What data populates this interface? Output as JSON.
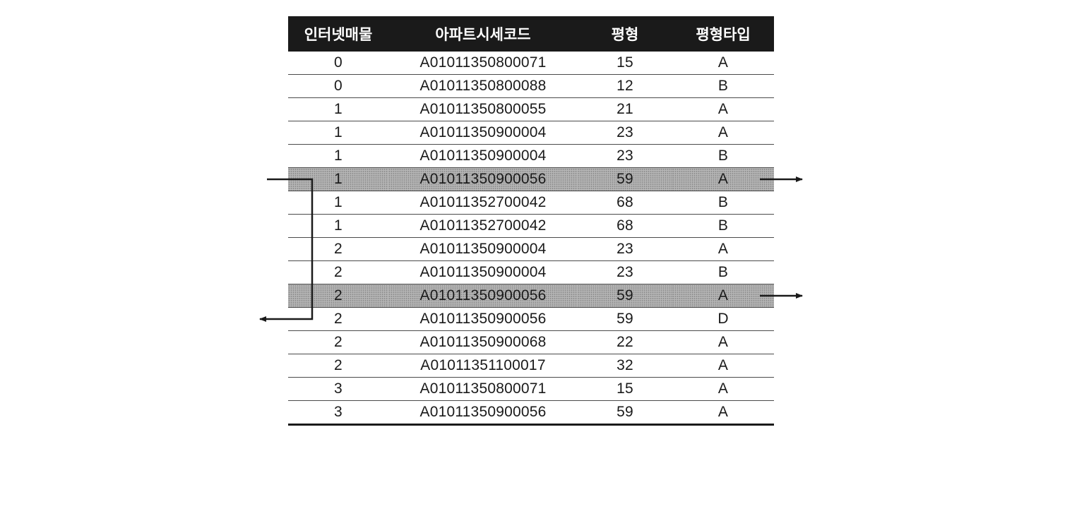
{
  "table": {
    "headers": [
      "인터넷매물",
      "아파트시세코드",
      "평형",
      "평형타입"
    ],
    "rows": [
      {
        "cells": [
          "0",
          "A01011350800071",
          "15",
          "A"
        ],
        "highlight": false
      },
      {
        "cells": [
          "0",
          "A01011350800088",
          "12",
          "B"
        ],
        "highlight": false
      },
      {
        "cells": [
          "1",
          "A01011350800055",
          "21",
          "A"
        ],
        "highlight": false
      },
      {
        "cells": [
          "1",
          "A01011350900004",
          "23",
          "A"
        ],
        "highlight": false
      },
      {
        "cells": [
          "1",
          "A01011350900004",
          "23",
          "B"
        ],
        "highlight": false
      },
      {
        "cells": [
          "1",
          "A01011350900056",
          "59",
          "A"
        ],
        "highlight": true
      },
      {
        "cells": [
          "1",
          "A01011352700042",
          "68",
          "B"
        ],
        "highlight": false
      },
      {
        "cells": [
          "1",
          "A01011352700042",
          "68",
          "B"
        ],
        "highlight": false
      },
      {
        "cells": [
          "2",
          "A01011350900004",
          "23",
          "A"
        ],
        "highlight": false
      },
      {
        "cells": [
          "2",
          "A01011350900004",
          "23",
          "B"
        ],
        "highlight": false
      },
      {
        "cells": [
          "2",
          "A01011350900056",
          "59",
          "A"
        ],
        "highlight": true
      },
      {
        "cells": [
          "2",
          "A01011350900056",
          "59",
          "D"
        ],
        "highlight": false
      },
      {
        "cells": [
          "2",
          "A01011350900068",
          "22",
          "A"
        ],
        "highlight": false
      },
      {
        "cells": [
          "2",
          "A01011351100017",
          "32",
          "A"
        ],
        "highlight": false
      },
      {
        "cells": [
          "3",
          "A01011350800071",
          "15",
          "A"
        ],
        "highlight": false
      },
      {
        "cells": [
          "3",
          "A01011350900056",
          "59",
          "A"
        ],
        "highlight": false
      }
    ]
  },
  "colors": {
    "header_bg": "#1a1a1a",
    "header_text": "#ffffff",
    "highlight_bg": "#b7b7b7",
    "rule": "#4a4a4a",
    "arrow": "#1a1a1a"
  },
  "annotations": [
    {
      "type": "right-arrow",
      "row": 5
    },
    {
      "type": "right-arrow",
      "row": 10
    },
    {
      "type": "bracket-arrow-left",
      "from_row": 5,
      "to_row": 11
    }
  ]
}
